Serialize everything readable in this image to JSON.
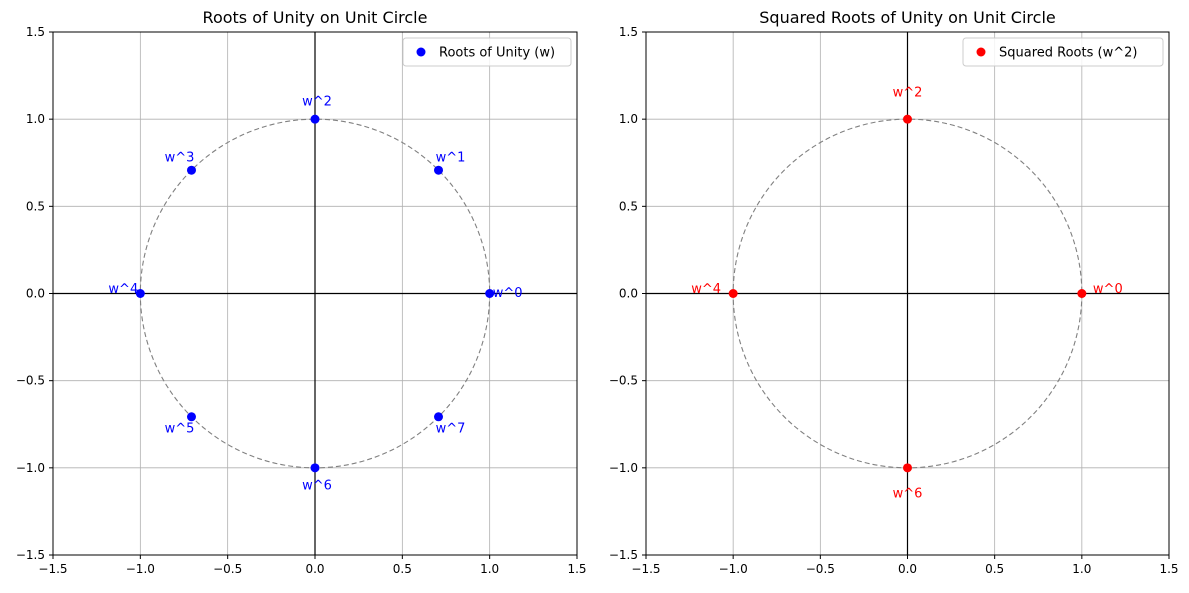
{
  "chart_data": [
    {
      "type": "scatter",
      "title": "Roots of Unity on Unit Circle",
      "xlabel": "",
      "ylabel": "",
      "xlim": [
        -1.5,
        1.5
      ],
      "ylim": [
        -1.5,
        1.5
      ],
      "xticks": [
        -1.5,
        -1.0,
        -0.5,
        0.0,
        0.5,
        1.0,
        1.5
      ],
      "yticks": [
        -1.5,
        -1.0,
        -0.5,
        0.0,
        0.5,
        1.0,
        1.5
      ],
      "xtick_labels": [
        "−1.5",
        "−1.0",
        "−0.5",
        "0.0",
        "0.5",
        "1.0",
        "1.5"
      ],
      "ytick_labels": [
        "−1.5",
        "−1.0",
        "−0.5",
        "0.0",
        "0.5",
        "1.0",
        "1.5"
      ],
      "grid": true,
      "unit_circle": true,
      "legend_position": "top-right",
      "series": [
        {
          "name": "Roots of Unity (w)",
          "color": "#0000ff",
          "points": [
            {
              "x": 1.0,
              "y": 0.0,
              "label": "w^0"
            },
            {
              "x": 0.7071,
              "y": 0.7071,
              "label": "w^1"
            },
            {
              "x": 0.0,
              "y": 1.0,
              "label": "w^2"
            },
            {
              "x": -0.7071,
              "y": 0.7071,
              "label": "w^3"
            },
            {
              "x": -1.0,
              "y": 0.0,
              "label": "w^4"
            },
            {
              "x": -0.7071,
              "y": -0.7071,
              "label": "w^5"
            },
            {
              "x": 0.0,
              "y": -1.0,
              "label": "w^6"
            },
            {
              "x": 0.7071,
              "y": -0.7071,
              "label": "w^7"
            }
          ]
        }
      ]
    },
    {
      "type": "scatter",
      "title": "Squared Roots of Unity on Unit Circle",
      "xlabel": "",
      "ylabel": "",
      "xlim": [
        -1.5,
        1.5
      ],
      "ylim": [
        -1.5,
        1.5
      ],
      "xticks": [
        -1.5,
        -1.0,
        -0.5,
        0.0,
        0.5,
        1.0,
        1.5
      ],
      "yticks": [
        -1.5,
        -1.0,
        -0.5,
        0.0,
        0.5,
        1.0,
        1.5
      ],
      "xtick_labels": [
        "−1.5",
        "−1.0",
        "−0.5",
        "0.0",
        "0.5",
        "1.0",
        "1.5"
      ],
      "ytick_labels": [
        "−1.5",
        "−1.0",
        "−0.5",
        "0.0",
        "0.5",
        "1.0",
        "1.5"
      ],
      "grid": true,
      "unit_circle": true,
      "legend_position": "top-right",
      "series": [
        {
          "name": "Squared Roots (w^2)",
          "color": "#ff0000",
          "points": [
            {
              "x": 1.0,
              "y": 0.0,
              "label": "w^0"
            },
            {
              "x": 0.0,
              "y": 1.0,
              "label": "w^2"
            },
            {
              "x": -1.0,
              "y": 0.0,
              "label": "w^4"
            },
            {
              "x": 0.0,
              "y": -1.0,
              "label": "w^6"
            }
          ]
        }
      ]
    }
  ]
}
